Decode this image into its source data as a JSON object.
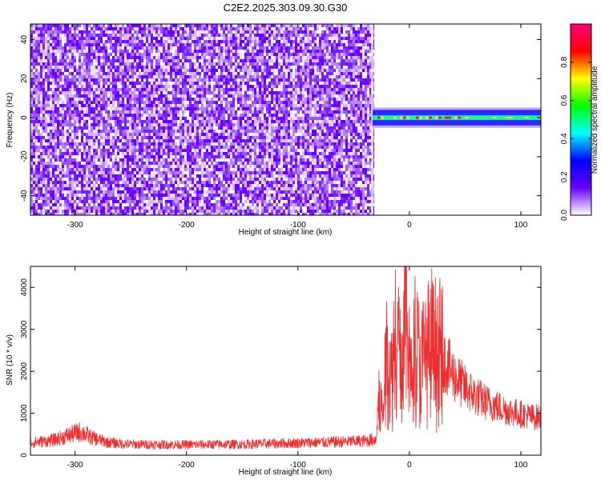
{
  "chart_data": [
    {
      "type": "heatmap",
      "title": "C2E2.2025.303.09.30.G30",
      "xlabel": "Height of straight line (km)",
      "ylabel": "Frequency (Hz)",
      "xlim": [
        -340,
        118
      ],
      "ylim": [
        -50,
        48
      ],
      "xticks": [
        -300,
        -200,
        -100,
        0,
        100
      ],
      "yticks": [
        -40,
        -20,
        0,
        20,
        40
      ],
      "signal_start_km": -33,
      "signal_band_hz": [
        -4,
        4
      ],
      "colorbar": {
        "label": "Normalized spectral amplitude",
        "range": [
          0.0,
          1.0
        ],
        "ticks": [
          "0.0",
          "0.2",
          "0.4",
          "0.6",
          "0.8"
        ],
        "stops": [
          "#ffffff",
          "#6a00ff",
          "#0000ff",
          "#00ffff",
          "#00ff00",
          "#ffff00",
          "#ff0000",
          "#ff0080"
        ]
      }
    },
    {
      "type": "line",
      "xlabel": "Height of straight line (km)",
      "ylabel": "SNR (10 * v/v)",
      "xlim": [
        -340,
        118
      ],
      "ylim": [
        0,
        4500
      ],
      "xticks": [
        -300,
        -200,
        -100,
        0,
        100
      ],
      "yticks": [
        0,
        1000,
        2000,
        3000,
        4000
      ],
      "color": "#ee2e2e",
      "series": [
        {
          "x": [
            -340,
            -320,
            -305,
            -295,
            -285,
            -270,
            -250,
            -200,
            -150,
            -100,
            -60,
            -40,
            -30,
            -27,
            -24,
            -20,
            -16,
            -12,
            -8,
            -4,
            0,
            5,
            10,
            15,
            20,
            25,
            30,
            40,
            50,
            60,
            70,
            80,
            90,
            100,
            110,
            118
          ],
          "y": [
            300,
            350,
            480,
            560,
            420,
            300,
            260,
            250,
            260,
            290,
            320,
            340,
            380,
            1400,
            900,
            2500,
            1800,
            3200,
            2000,
            3400,
            2200,
            2600,
            2100,
            2400,
            2500,
            2550,
            2300,
            1900,
            1600,
            1400,
            1250,
            1150,
            1050,
            980,
            920,
            900
          ]
        }
      ]
    }
  ]
}
